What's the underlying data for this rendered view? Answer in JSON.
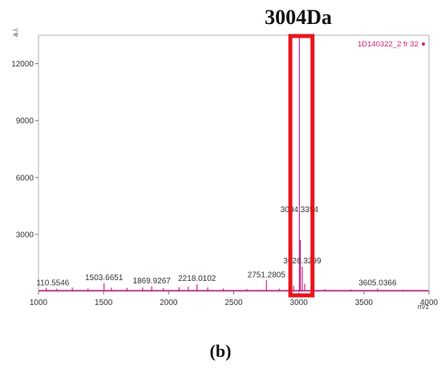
{
  "chart_data": {
    "type": "line",
    "title": "3004Da",
    "caption": "(b)",
    "xlabel": "m/z",
    "ylabel": "a.i.",
    "xlim": [
      1000,
      4000
    ],
    "ylim": [
      0,
      13500
    ],
    "xticks": [
      1000,
      1500,
      2000,
      2500,
      3000,
      3500,
      4000
    ],
    "yticks": [
      3000,
      6000,
      9000,
      12000
    ],
    "grid": false,
    "legend": {
      "position": "top-right",
      "entries": [
        "1D140322_2 fr 32"
      ]
    },
    "series": [
      {
        "name": "1D140322_2 fr 32",
        "color": "#cc2288",
        "peaks": [
          {
            "x": 1060,
            "y": 180
          },
          {
            "x": 1140,
            "y": 140
          },
          {
            "x": 1260,
            "y": 200
          },
          {
            "x": 1380,
            "y": 150
          },
          {
            "x": 1503.6651,
            "y": 420
          },
          {
            "x": 1560,
            "y": 200
          },
          {
            "x": 1680,
            "y": 180
          },
          {
            "x": 1800,
            "y": 200
          },
          {
            "x": 1869.9267,
            "y": 260
          },
          {
            "x": 1960,
            "y": 180
          },
          {
            "x": 2080,
            "y": 220
          },
          {
            "x": 2150,
            "y": 240
          },
          {
            "x": 2218.0102,
            "y": 380
          },
          {
            "x": 2300,
            "y": 200
          },
          {
            "x": 2420,
            "y": 150
          },
          {
            "x": 2600,
            "y": 120
          },
          {
            "x": 2751.2805,
            "y": 580
          },
          {
            "x": 2850,
            "y": 140
          },
          {
            "x": 2960,
            "y": 300
          },
          {
            "x": 3004.3354,
            "y": 13400
          },
          {
            "x": 3012,
            "y": 2700
          },
          {
            "x": 3026.3299,
            "y": 1300
          },
          {
            "x": 3045,
            "y": 400
          },
          {
            "x": 3200,
            "y": 120
          },
          {
            "x": 3400,
            "y": 100
          },
          {
            "x": 3605.0366,
            "y": 150
          },
          {
            "x": 3800,
            "y": 90
          }
        ]
      }
    ],
    "annotations": [
      {
        "text": "110.5546",
        "x": 1110,
        "y": 150
      },
      {
        "text": "1503.6651",
        "x": 1503.6651,
        "y": 420
      },
      {
        "text": "1869.9267",
        "x": 1869.9267,
        "y": 260
      },
      {
        "text": "2218.0102",
        "x": 2218.0102,
        "y": 380
      },
      {
        "text": "2751.2805",
        "x": 2751.2805,
        "y": 580
      },
      {
        "text": "3004.3354",
        "x": 3004.3354,
        "y": 4000
      },
      {
        "text": "3026.3299",
        "x": 3026.3299,
        "y": 1300
      },
      {
        "text": "3605.0366",
        "x": 3605.0366,
        "y": 150
      }
    ],
    "highlight": {
      "x_range": [
        2935,
        3105
      ],
      "color": "#e8141b"
    }
  }
}
